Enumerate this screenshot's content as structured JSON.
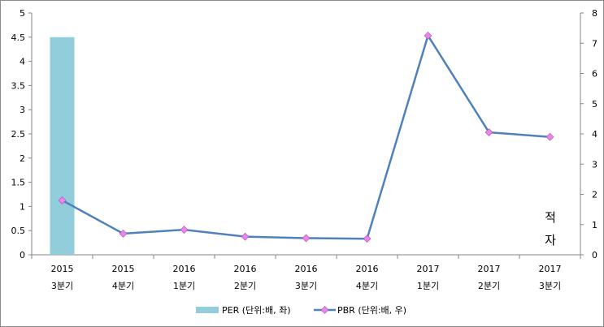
{
  "chart_data": {
    "type": "bar+line",
    "categories": [
      [
        "2015",
        "3분기"
      ],
      [
        "2015",
        "4분기"
      ],
      [
        "2016",
        "1분기"
      ],
      [
        "2016",
        "2분기"
      ],
      [
        "2016",
        "3분기"
      ],
      [
        "2016",
        "4분기"
      ],
      [
        "2017",
        "1분기"
      ],
      [
        "2017",
        "2분기"
      ],
      [
        "2017",
        "3분기"
      ]
    ],
    "series": [
      {
        "name": "PER (단위:배, 좌)",
        "kind": "bar",
        "axis": "left",
        "color": "#92cddc",
        "values": [
          4.5,
          null,
          null,
          null,
          null,
          null,
          null,
          null,
          null
        ]
      },
      {
        "name": "PBR (단위:배, 우)",
        "kind": "line",
        "axis": "right",
        "color": "#4f81bd",
        "marker_color": "#ee82ee",
        "values": [
          1.8,
          0.7,
          0.83,
          0.6,
          0.55,
          0.53,
          7.25,
          4.05,
          3.9
        ]
      }
    ],
    "left_axis": {
      "min": 0,
      "max": 5,
      "step": 0.5,
      "ticks": [
        "0",
        "0.5",
        "1",
        "1.5",
        "2",
        "2.5",
        "3",
        "3.5",
        "4",
        "4.5",
        "5"
      ]
    },
    "right_axis": {
      "min": 0,
      "max": 8,
      "step": 1,
      "ticks": [
        "0",
        "1",
        "2",
        "3",
        "4",
        "5",
        "6",
        "7",
        "8"
      ]
    },
    "annotation": [
      "적",
      "자"
    ],
    "grid": false,
    "legend_position": "bottom"
  }
}
